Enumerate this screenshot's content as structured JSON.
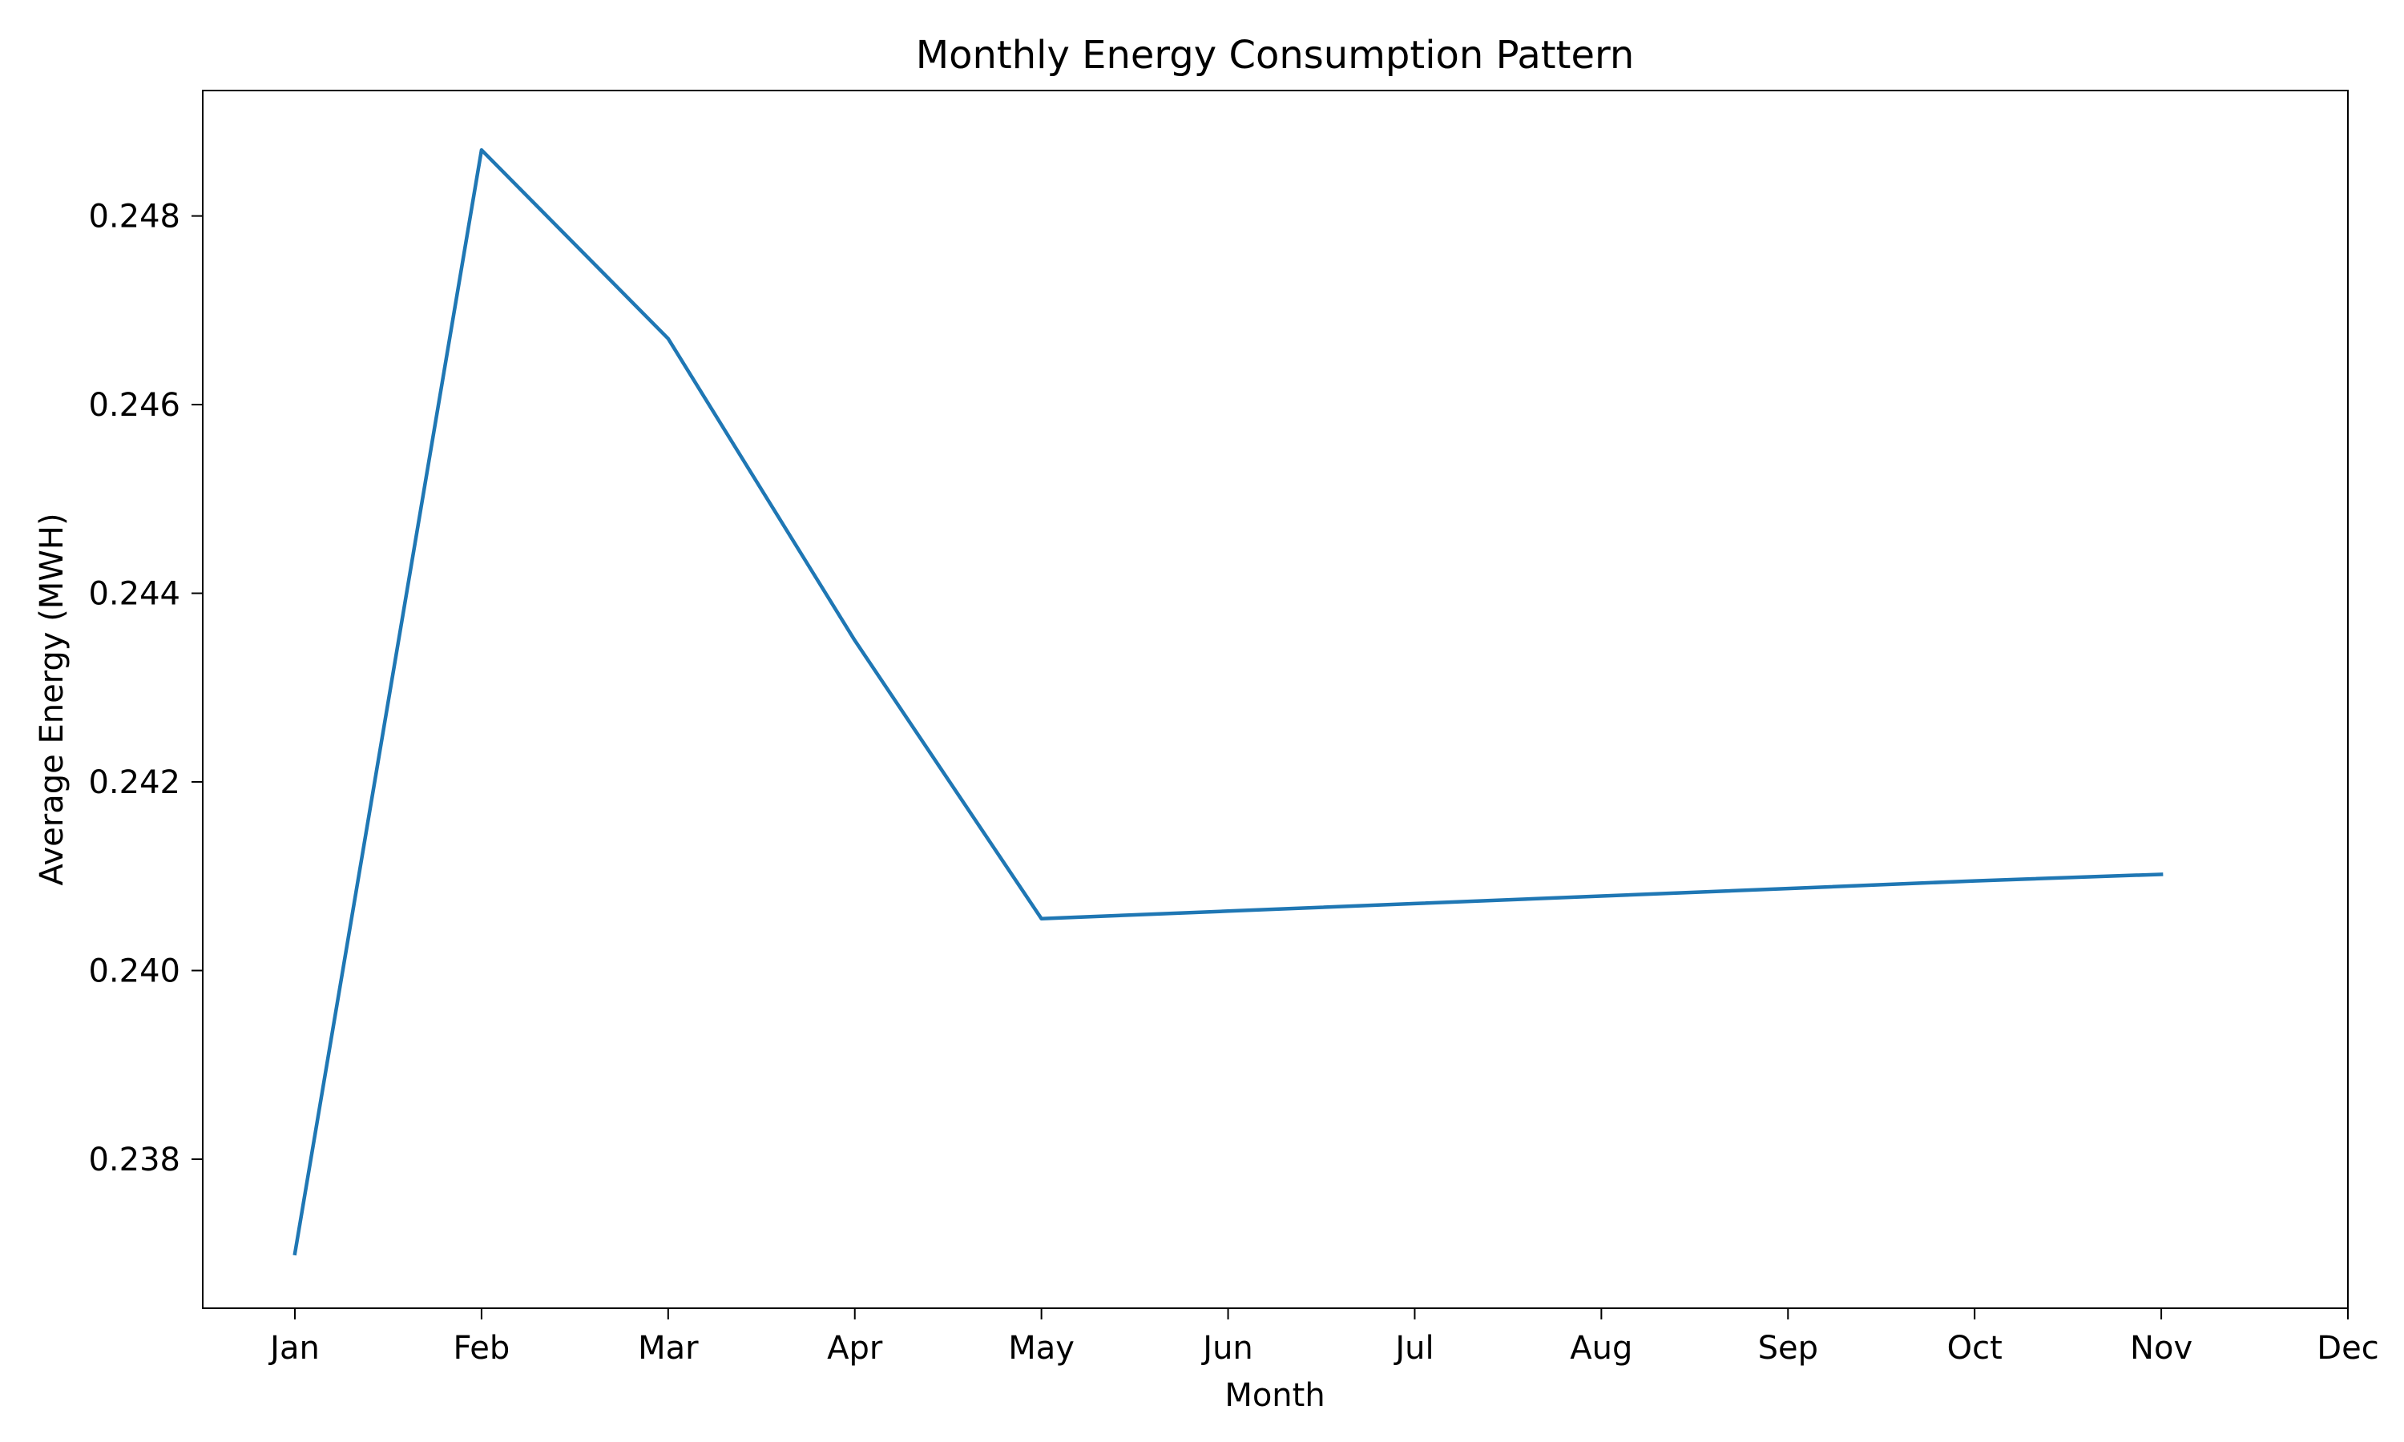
{
  "chart_data": {
    "type": "line",
    "title": "Monthly Energy Consumption Pattern",
    "xlabel": "Month",
    "ylabel": "Average Energy (MWH)",
    "categories": [
      "Jan",
      "Feb",
      "Mar",
      "Apr",
      "May",
      "Jun",
      "Jul",
      "Aug",
      "Sep",
      "Oct",
      "Nov",
      "Dec"
    ],
    "series": [
      {
        "color": "#1f77b4",
        "values": [
          0.237,
          0.2487,
          0.2467,
          0.2435,
          0.24055,
          0.24063,
          0.24071,
          0.24079,
          0.24087,
          0.24095,
          0.24102,
          null
        ]
      }
    ],
    "yticks": [
      0.238,
      0.24,
      0.242,
      0.244,
      0.246,
      0.248
    ],
    "ytick_labels": [
      "0.238",
      "0.240",
      "0.242",
      "0.244",
      "0.246",
      "0.248"
    ],
    "ylim": [
      0.23642,
      0.24933
    ],
    "grid": false,
    "legend": "none"
  }
}
